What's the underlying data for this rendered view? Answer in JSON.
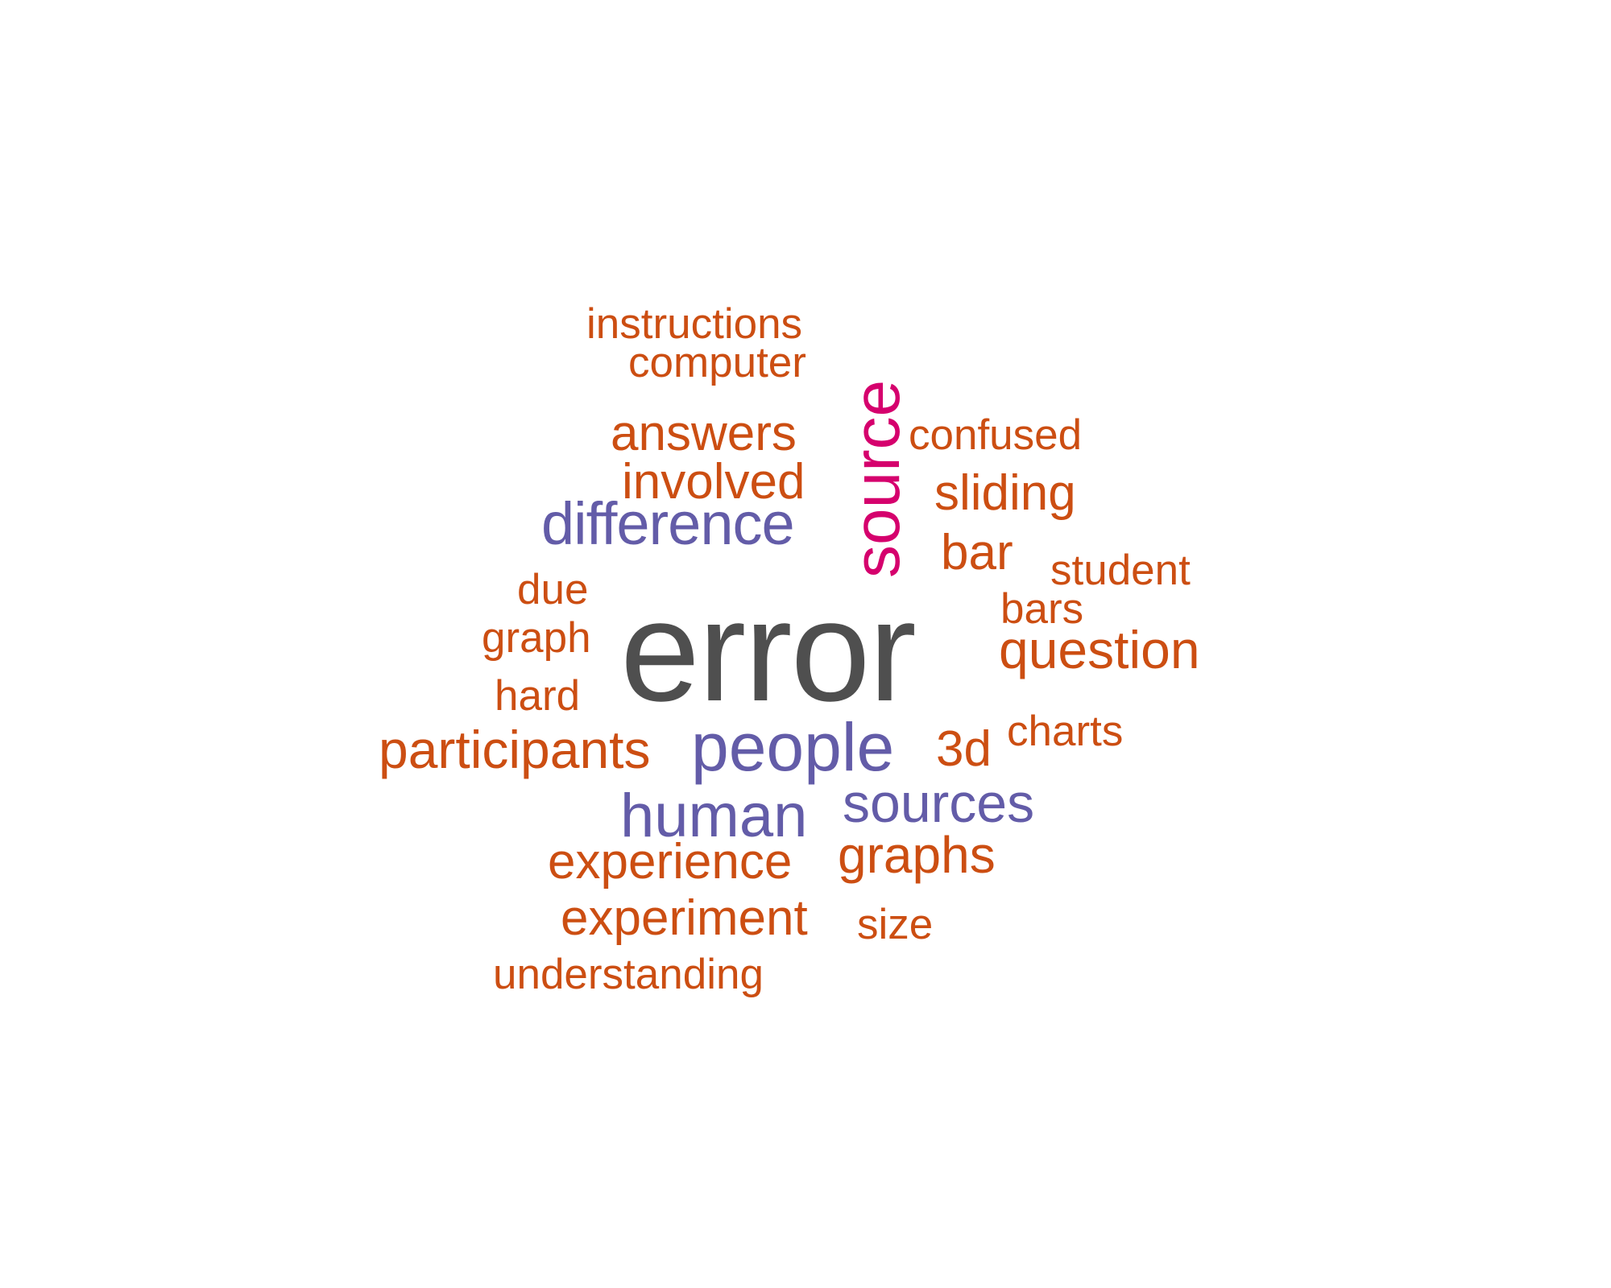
{
  "word_cloud": {
    "palette": {
      "orange": "#cc4e12",
      "purple": "#635ca8",
      "magenta": "#d5006d",
      "grey": "#4f4f4f"
    },
    "words": [
      {
        "text": "error",
        "color": "grey"
      },
      {
        "text": "source",
        "color": "magenta",
        "orientation": "vertical"
      },
      {
        "text": "difference",
        "color": "purple"
      },
      {
        "text": "people",
        "color": "purple"
      },
      {
        "text": "human",
        "color": "purple"
      },
      {
        "text": "sources",
        "color": "purple"
      },
      {
        "text": "instructions",
        "color": "orange"
      },
      {
        "text": "computer",
        "color": "orange"
      },
      {
        "text": "answers",
        "color": "orange"
      },
      {
        "text": "involved",
        "color": "orange"
      },
      {
        "text": "confused",
        "color": "orange"
      },
      {
        "text": "sliding",
        "color": "orange"
      },
      {
        "text": "bar",
        "color": "orange"
      },
      {
        "text": "student",
        "color": "orange"
      },
      {
        "text": "bars",
        "color": "orange"
      },
      {
        "text": "question",
        "color": "orange"
      },
      {
        "text": "due",
        "color": "orange"
      },
      {
        "text": "graph",
        "color": "orange"
      },
      {
        "text": "hard",
        "color": "orange"
      },
      {
        "text": "participants",
        "color": "orange"
      },
      {
        "text": "3d",
        "color": "orange"
      },
      {
        "text": "charts",
        "color": "orange"
      },
      {
        "text": "experience",
        "color": "orange"
      },
      {
        "text": "graphs",
        "color": "orange"
      },
      {
        "text": "experiment",
        "color": "orange"
      },
      {
        "text": "size",
        "color": "orange"
      },
      {
        "text": "understanding",
        "color": "orange"
      }
    ]
  }
}
